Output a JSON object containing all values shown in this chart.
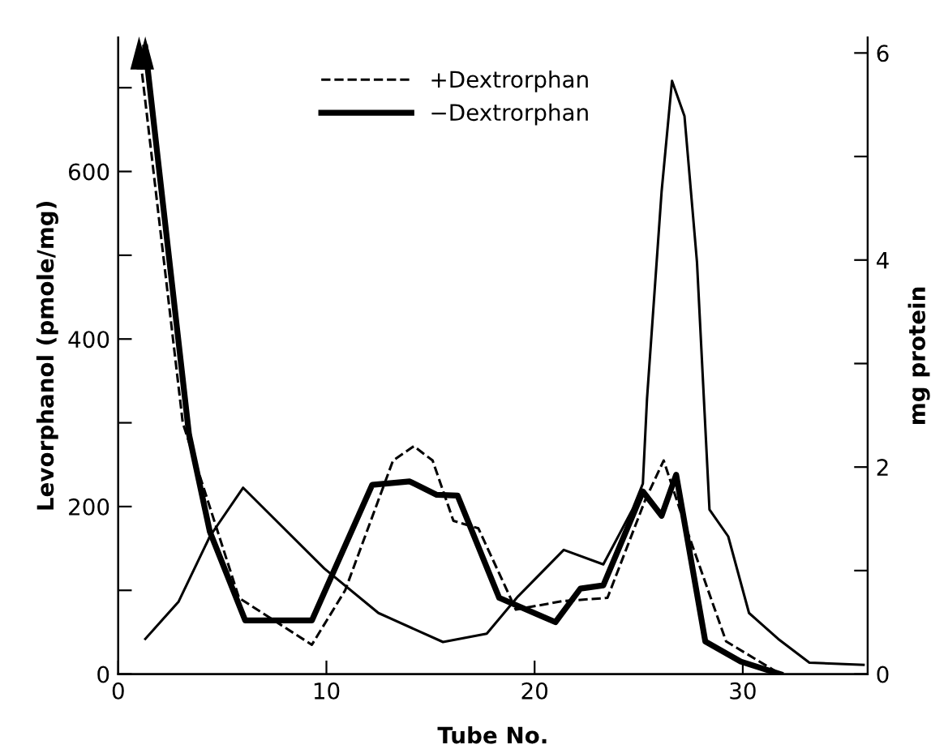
{
  "chart_data": {
    "type": "line",
    "xlabel": "Tube No.",
    "ylabel": "Levorphanol (pmole/mg)",
    "y2label": "mg protein",
    "legend": "top",
    "xlim": [
      0,
      36
    ],
    "xticks": [
      0,
      10,
      20,
      30
    ],
    "ylim": [
      0,
      760
    ],
    "yticks": [
      0,
      {
        "value": 100,
        "label": null
      },
      200,
      {
        "value": 300,
        "label": null
      },
      400,
      {
        "value": 500,
        "label": null
      },
      600,
      {
        "value": 700,
        "label": null
      }
    ],
    "y2lim": [
      0,
      6.15
    ],
    "y2ticks": [
      0,
      {
        "value": 1,
        "label": null
      },
      2,
      {
        "value": 3,
        "label": null
      },
      4,
      {
        "value": 5,
        "label": null
      },
      6
    ],
    "grid": false,
    "marker": "none",
    "series": [
      {
        "name": "+Dextrorphan",
        "color": "#000000",
        "line_style": "dashed",
        "x": [
          1.0,
          3.1,
          5.8,
          9.3,
          10.9,
          13.2,
          14.2,
          15.1,
          16.1,
          17.3,
          19.1,
          21.3,
          23.5,
          25.3,
          26.2,
          27.2,
          29.2,
          31.8
        ],
        "values": [
          748,
          300,
          91,
          35,
          100,
          255,
          272,
          255,
          183,
          174,
          77,
          87,
          91,
          207,
          255,
          180,
          39,
          0
        ]
      },
      {
        "name": "−Dextrorphan",
        "color": "#000000",
        "line_style": "solid",
        "x": [
          1.3,
          3.4,
          4.4,
          6.1,
          9.3,
          12.2,
          14.0,
          15.3,
          16.3,
          18.3,
          21.0,
          22.2,
          23.3,
          25.2,
          26.1,
          26.8,
          28.2,
          29.9,
          31.8
        ],
        "values": [
          748,
          286,
          170,
          64,
          64,
          226,
          230,
          214,
          213,
          91,
          62,
          102,
          106,
          218,
          189,
          238,
          39,
          15,
          0
        ]
      },
      {
        "color": "#000000",
        "line_style": "solid",
        "axis": "y2",
        "x": [
          1.3,
          2.9,
          4.4,
          6.0,
          9.9,
          12.5,
          15.6,
          17.7,
          19.2,
          21.4,
          23.3,
          24.7,
          25.2,
          25.4,
          26.1,
          26.6,
          27.2,
          27.8,
          28.4,
          29.3,
          30.3,
          31.7,
          33.2,
          35.8
        ],
        "values": [
          0.34,
          0.7,
          1.33,
          1.8,
          1.02,
          0.59,
          0.31,
          0.39,
          0.75,
          1.2,
          1.06,
          1.59,
          1.84,
          2.66,
          4.66,
          5.73,
          5.39,
          3.98,
          1.59,
          1.33,
          0.59,
          0.34,
          0.11,
          0.09
        ]
      }
    ]
  }
}
